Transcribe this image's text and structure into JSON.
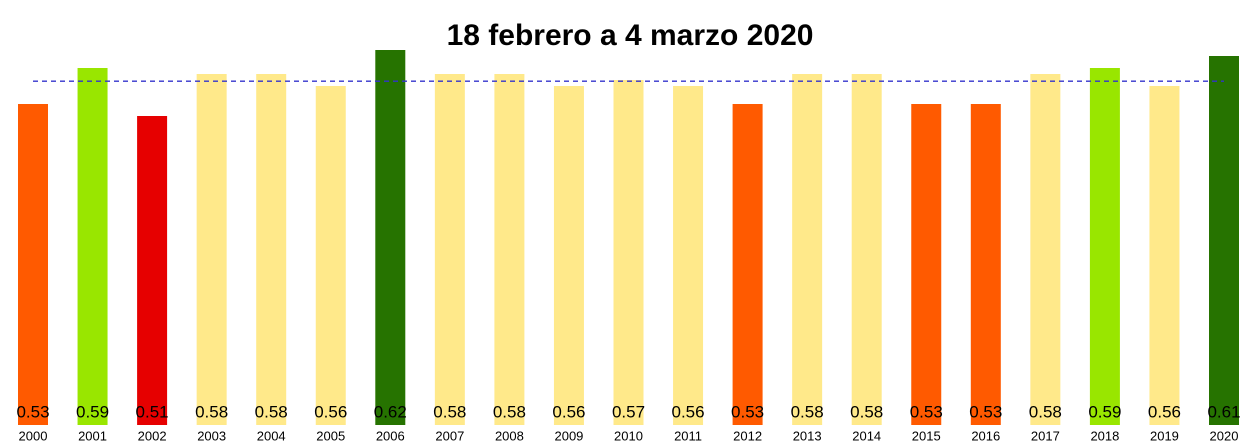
{
  "chart_data": {
    "type": "bar",
    "title": "18 febrero a 4 marzo 2020",
    "categories": [
      "2000",
      "2001",
      "2002",
      "2003",
      "2004",
      "2005",
      "2006",
      "2007",
      "2008",
      "2009",
      "2010",
      "2011",
      "2012",
      "2013",
      "2014",
      "2015",
      "2016",
      "2017",
      "2018",
      "2019",
      "2020"
    ],
    "values": [
      0.53,
      0.59,
      0.51,
      0.58,
      0.58,
      0.56,
      0.62,
      0.58,
      0.58,
      0.56,
      0.57,
      0.56,
      0.53,
      0.58,
      0.58,
      0.53,
      0.53,
      0.58,
      0.59,
      0.56,
      0.61
    ],
    "colors": [
      "#ff5a00",
      "#99e600",
      "#e60000",
      "#ffe98a",
      "#ffe98a",
      "#ffe98a",
      "#267300",
      "#ffe98a",
      "#ffe98a",
      "#ffe98a",
      "#ffe98a",
      "#ffe98a",
      "#ff5a00",
      "#ffe98a",
      "#ffe98a",
      "#ff5a00",
      "#ff5a00",
      "#ffe98a",
      "#99e600",
      "#ffe98a",
      "#267300"
    ],
    "ylim": [
      0,
      0.7
    ],
    "reference_line": {
      "value": 0.568,
      "color": "#3333cc"
    }
  }
}
